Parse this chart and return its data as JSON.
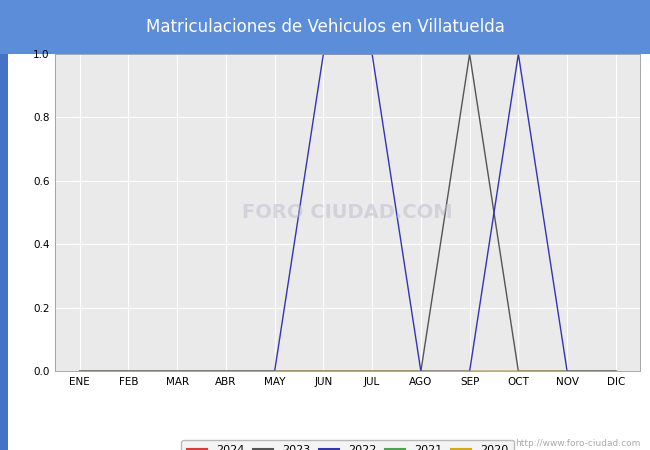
{
  "title": "Matriculaciones de Vehiculos en Villatuelda",
  "title_bg_color": "#5b8dd9",
  "title_text_color": "#ffffff",
  "plot_bg_color": "#eaeaea",
  "fig_bg_color": "#ffffff",
  "left_bar_color": "#4472c4",
  "months": [
    "ENE",
    "FEB",
    "MAR",
    "ABR",
    "MAY",
    "JUN",
    "JUL",
    "AGO",
    "SEP",
    "OCT",
    "NOV",
    "DIC"
  ],
  "month_indices": [
    1,
    2,
    3,
    4,
    5,
    6,
    7,
    8,
    9,
    10,
    11,
    12
  ],
  "series": {
    "2024": {
      "color": "#ee3333",
      "linewidth": 1.0,
      "data": [
        [
          1,
          0
        ],
        [
          2,
          0
        ],
        [
          3,
          0
        ],
        [
          4,
          0
        ],
        [
          5,
          0
        ],
        [
          6,
          0
        ],
        [
          7,
          0
        ],
        [
          8,
          0
        ],
        [
          9,
          0
        ],
        [
          10,
          0
        ],
        [
          11,
          0
        ],
        [
          12,
          0
        ]
      ]
    },
    "2023": {
      "color": "#555555",
      "linewidth": 1.0,
      "data": [
        [
          1,
          0
        ],
        [
          2,
          0
        ],
        [
          3,
          0
        ],
        [
          4,
          0
        ],
        [
          5,
          0
        ],
        [
          6,
          0
        ],
        [
          7,
          0
        ],
        [
          8,
          0
        ],
        [
          9,
          1.0
        ],
        [
          10,
          0
        ],
        [
          11,
          0
        ],
        [
          12,
          0
        ]
      ]
    },
    "2022": {
      "color": "#3333bb",
      "linewidth": 1.0,
      "data": [
        [
          1,
          0
        ],
        [
          2,
          0
        ],
        [
          3,
          0
        ],
        [
          4,
          0
        ],
        [
          5,
          0
        ],
        [
          6,
          1.0
        ],
        [
          7,
          1.0
        ],
        [
          8,
          0
        ],
        [
          9,
          0
        ],
        [
          10,
          1.0
        ],
        [
          11,
          0
        ],
        [
          12,
          0
        ]
      ]
    },
    "2021": {
      "color": "#44aa44",
      "linewidth": 1.0,
      "data": [
        [
          1,
          0
        ],
        [
          2,
          0
        ],
        [
          3,
          0
        ],
        [
          4,
          0
        ],
        [
          5,
          0
        ],
        [
          6,
          0
        ],
        [
          7,
          0
        ],
        [
          8,
          0
        ],
        [
          9,
          0
        ],
        [
          10,
          0
        ],
        [
          11,
          0
        ],
        [
          12,
          0
        ]
      ]
    },
    "2020": {
      "color": "#ddaa00",
      "linewidth": 1.0,
      "data": [
        [
          1,
          0
        ],
        [
          2,
          0
        ],
        [
          3,
          0
        ],
        [
          4,
          0
        ],
        [
          5,
          0
        ],
        [
          6,
          0
        ],
        [
          7,
          0
        ],
        [
          8,
          0
        ],
        [
          9,
          0
        ],
        [
          10,
          0
        ],
        [
          11,
          0
        ],
        [
          12,
          0
        ]
      ]
    }
  },
  "legend_order": [
    "2024",
    "2023",
    "2022",
    "2021",
    "2020"
  ],
  "ylim": [
    0.0,
    1.0
  ],
  "yticks": [
    0.0,
    0.2,
    0.4,
    0.6,
    0.8,
    1.0
  ],
  "watermark_text": "http://www.foro-ciudad.com",
  "foro_watermark": "FORO CIUDAD.COM",
  "grid_color": "#ffffff",
  "grid_linewidth": 0.8,
  "title_fontsize": 12,
  "tick_fontsize": 7.5
}
